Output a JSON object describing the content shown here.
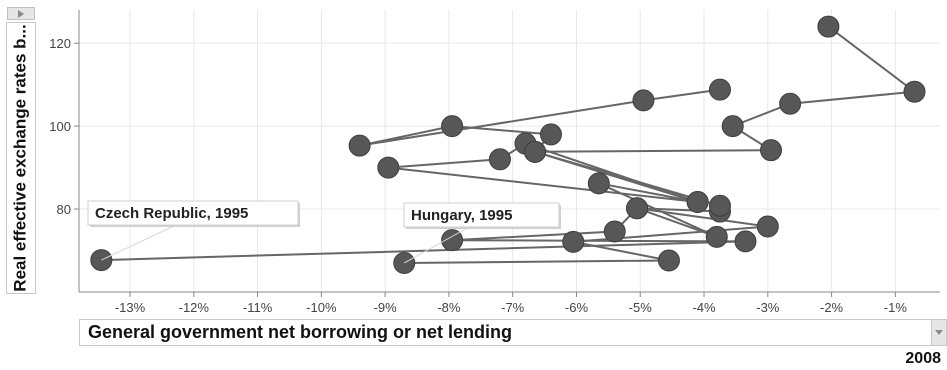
{
  "chart_data": {
    "type": "scatter",
    "title": "",
    "xlabel": "General government net borrowing or net lending",
    "ylabel": "Real effective exchange rates b...",
    "xlim": [
      -13.8,
      -0.3
    ],
    "ylim": [
      60,
      128
    ],
    "x_ticks": [
      "-13%",
      "-12%",
      "-11%",
      "-10%",
      "-9%",
      "-8%",
      "-7%",
      "-6%",
      "-5%",
      "-4%",
      "-3%",
      "-2%",
      "-1%"
    ],
    "y_ticks": [
      "80",
      "100",
      "120"
    ],
    "grid": true,
    "year_label": "2008",
    "series": [
      {
        "name": "Czech Republic",
        "points": [
          {
            "x": -13.45,
            "y": 67.7
          },
          {
            "x": -3.35,
            "y": 72.2
          },
          {
            "x": -7.95,
            "y": 72.5
          },
          {
            "x": -5.4,
            "y": 74.6
          },
          {
            "x": -5.05,
            "y": 80.2
          },
          {
            "x": -3.75,
            "y": 79.4
          },
          {
            "x": -3.75,
            "y": 80.8
          },
          {
            "x": -6.65,
            "y": 93.8
          },
          {
            "x": -6.4,
            "y": 98.0
          },
          {
            "x": -7.95,
            "y": 100.0
          },
          {
            "x": -9.4,
            "y": 95.3
          },
          {
            "x": -4.95,
            "y": 106.2
          },
          {
            "x": -3.75,
            "y": 108.8
          }
        ]
      },
      {
        "name": "Hungary",
        "points": [
          {
            "x": -8.7,
            "y": 67.0
          },
          {
            "x": -4.55,
            "y": 67.6
          },
          {
            "x": -6.05,
            "y": 72.1
          },
          {
            "x": -3.0,
            "y": 75.8
          },
          {
            "x": -5.05,
            "y": 80.2
          },
          {
            "x": -3.8,
            "y": 73.3
          },
          {
            "x": -5.65,
            "y": 86.2
          },
          {
            "x": -4.1,
            "y": 81.7
          },
          {
            "x": -8.95,
            "y": 90.0
          },
          {
            "x": -7.2,
            "y": 92.0
          },
          {
            "x": -6.8,
            "y": 95.8
          },
          {
            "x": -4.1,
            "y": 81.7
          },
          {
            "x": -6.65,
            "y": 93.8
          },
          {
            "x": -2.95,
            "y": 94.2
          },
          {
            "x": -3.55,
            "y": 100.0
          },
          {
            "x": -2.65,
            "y": 105.4
          },
          {
            "x": -0.7,
            "y": 108.3
          },
          {
            "x": -2.05,
            "y": 124.0
          }
        ]
      }
    ],
    "annotations": [
      {
        "text": "Czech Republic, 1995"
      },
      {
        "text": "Hungary, 1995"
      }
    ]
  }
}
